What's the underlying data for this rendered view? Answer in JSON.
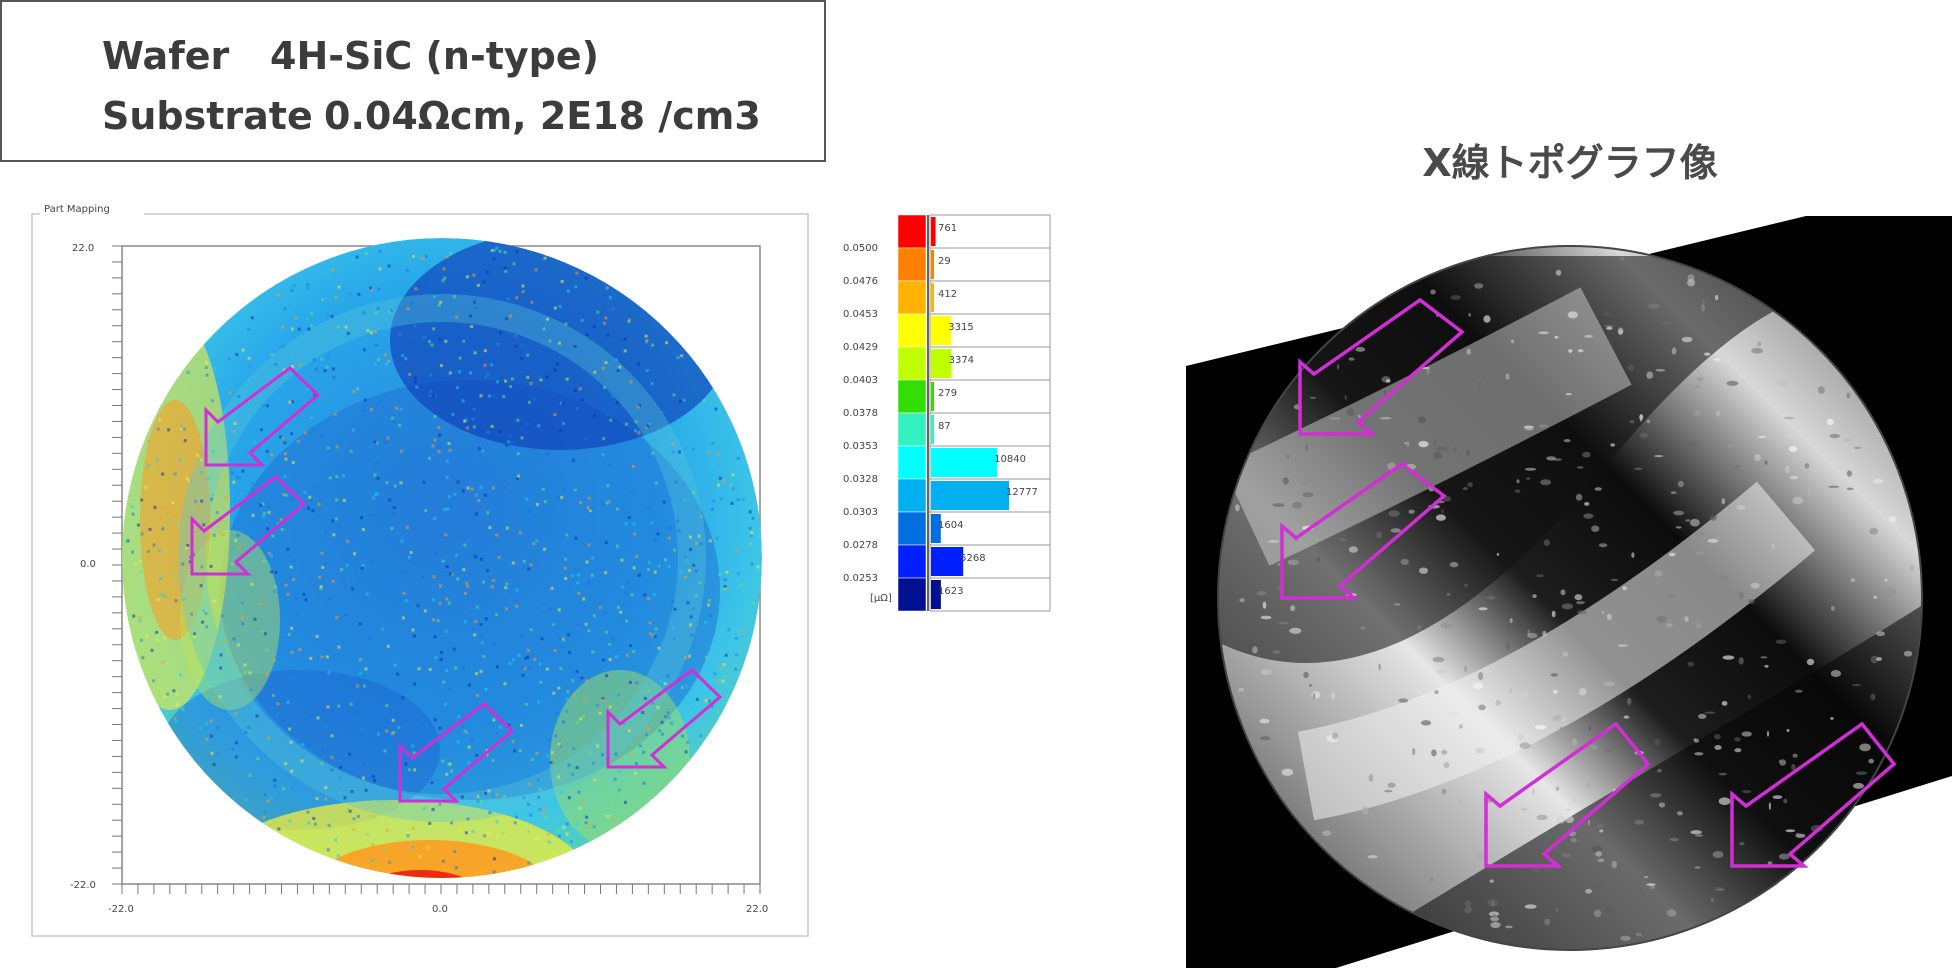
{
  "info": {
    "wafer_label": "Wafer",
    "wafer_value": "4H-SiC (n-type)",
    "substrate_label": "Substrate",
    "substrate_value": "0.04Ωcm, 2E18 /cm3"
  },
  "xray_title": "X線トポグラフ像",
  "chart_data": [
    {
      "type": "heatmap",
      "title": "Part Mapping",
      "xlim": [
        -22.0,
        22.0
      ],
      "ylim": [
        -22.0,
        22.0
      ],
      "x_tick_labels": [
        "-22.0",
        "0.0",
        "22.0"
      ],
      "y_tick_labels": [
        "22.0",
        "0.0",
        "-22.0"
      ],
      "grid": false,
      "colors": {
        "background_field": "#1e8fe0",
        "dark_blue": "#0a2fb0",
        "cyan": "#18d0f0",
        "green": "#6fe07a",
        "yellow": "#f2ee3a",
        "orange": "#ff9a1e",
        "red": "#e82010",
        "arrow": "#d22ed6"
      }
    },
    {
      "type": "bar",
      "orientation": "horizontal",
      "unit_label": "[μΩ]",
      "bins": [
        "0.0500",
        "0.0476",
        "0.0453",
        "0.0429",
        "0.0403",
        "0.0378",
        "0.0353",
        "0.0328",
        "0.0303",
        "0.0278",
        "0.0253"
      ],
      "counts": [
        761,
        29,
        412,
        3315,
        3374,
        279,
        87,
        10840,
        12777,
        1604,
        5268,
        1623
      ],
      "count_labels": [
        "761",
        "29",
        "412",
        "3315",
        "3374",
        "279",
        "87",
        "10840",
        "12777",
        "1604",
        "5268",
        "1623"
      ],
      "colors": [
        "#ff0000",
        "#ff8000",
        "#ffb300",
        "#ffff00",
        "#c0ff00",
        "#33dd00",
        "#33f0c0",
        "#00ffff",
        "#00b0f0",
        "#0070e0",
        "#0020ff",
        "#001090"
      ]
    }
  ]
}
